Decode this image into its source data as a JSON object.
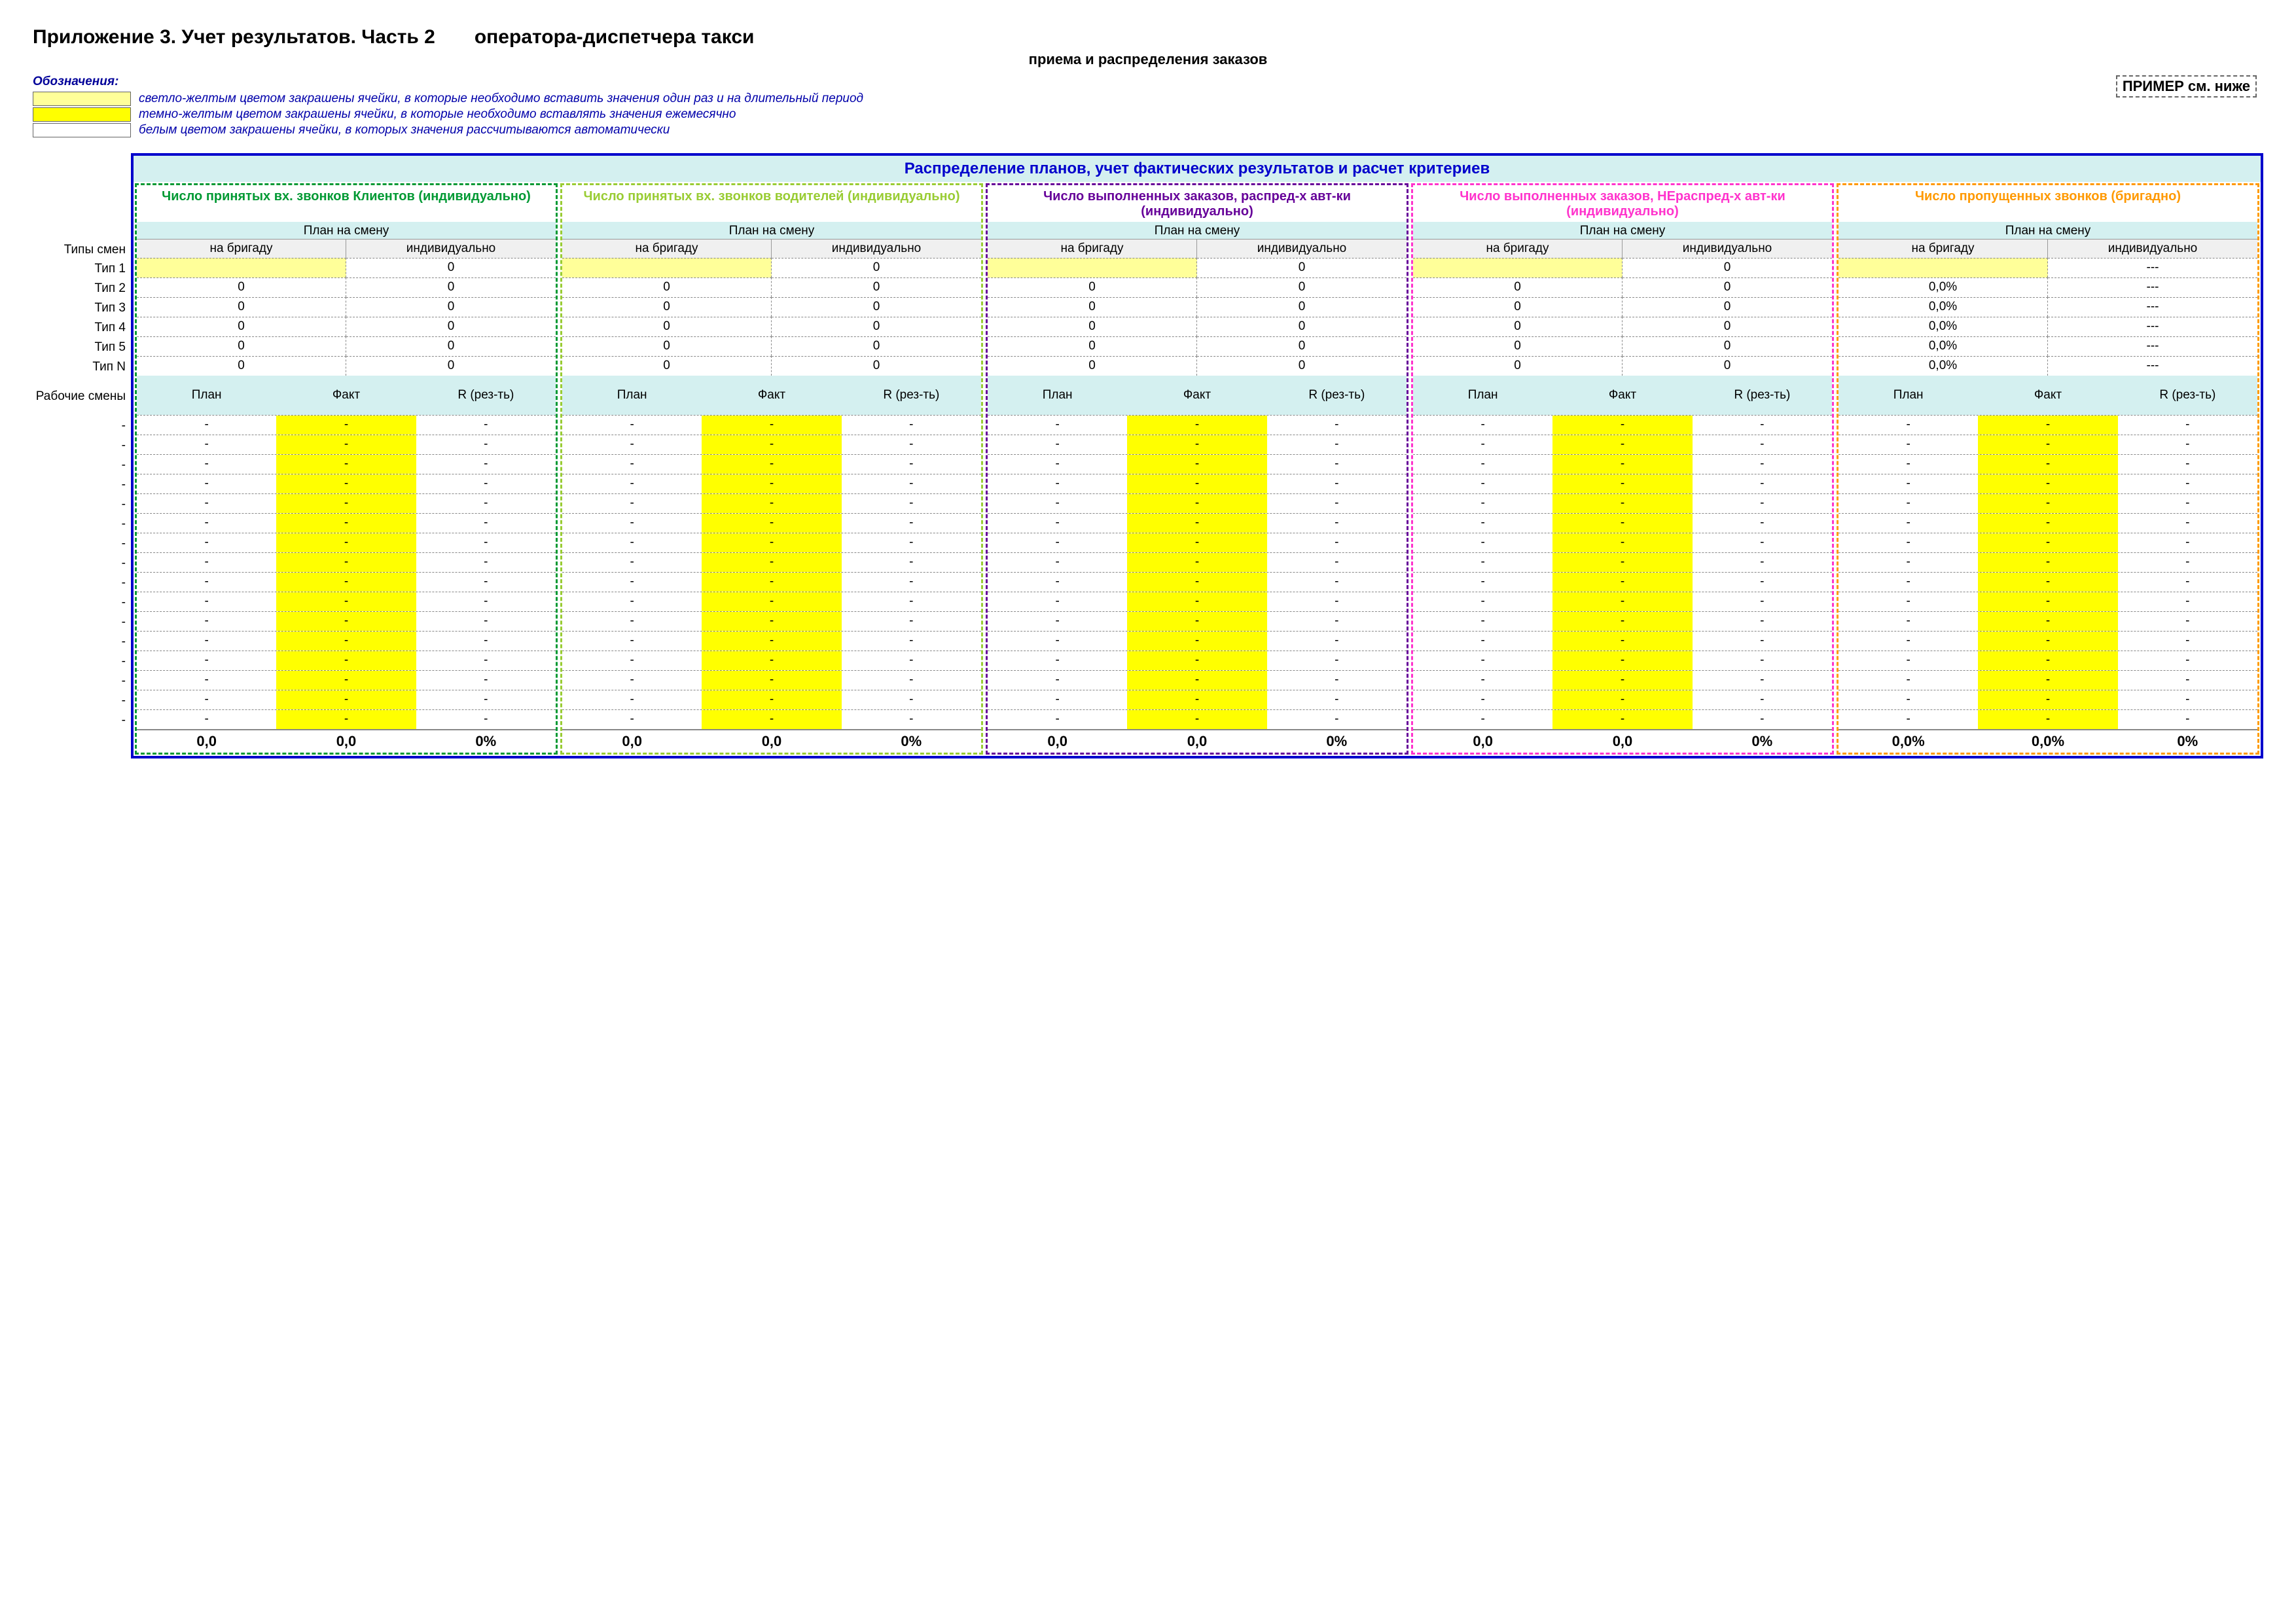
{
  "header": {
    "title_left": "Приложение 3. Учет результатов. Часть 2",
    "title_right": "оператора-диспетчера такси",
    "subtitle": "приема и распределения заказов",
    "example_note": "ПРИМЕР см. ниже"
  },
  "legend": {
    "label": "Обозначения:",
    "items": [
      {
        "swatch": "lite",
        "text": "светло-желтым цветом закрашены ячейки, в которые необходимо вставить значения один раз и на длительный период"
      },
      {
        "swatch": "dark",
        "text": "темно-желтым цветом закрашены ячейки, в которые необходимо вставлять значения ежемесячно"
      },
      {
        "swatch": "white",
        "text": "белым цветом закрашены ячейки, в которых значения рассчитываются автоматически"
      }
    ]
  },
  "main_title": "Распределение планов, учет фактических результатов и расчет критериев",
  "row_labels": {
    "types_header": "Типы смен",
    "types": [
      "Тип 1",
      "Тип 2",
      "Тип 3",
      "Тип 4",
      "Тип 5",
      "Тип N"
    ],
    "shifts_header": "Рабочие смены"
  },
  "common": {
    "plan_header": "План на смену",
    "sub_left": "на бригаду",
    "sub_right": "индивидуально",
    "pfr": [
      "План",
      "Факт",
      "R (рез-ть)"
    ],
    "dash": "-",
    "triple_dash": "---"
  },
  "shift_rows_count": 16,
  "blocks": [
    {
      "title": "Число принятых вх. звонков Клиентов (индивидуально)",
      "border_color": "#009933",
      "title_color": "#009933",
      "type_rows": [
        {
          "left": "",
          "left_bg": "lite",
          "right": "0"
        },
        {
          "left": "0",
          "left_bg": "",
          "right": "0"
        },
        {
          "left": "0",
          "left_bg": "",
          "right": "0"
        },
        {
          "left": "0",
          "left_bg": "",
          "right": "0"
        },
        {
          "left": "0",
          "left_bg": "",
          "right": "0"
        },
        {
          "left": "0",
          "left_bg": "",
          "right": "0"
        }
      ],
      "shift_cells": {
        "plan": "-",
        "fact": "-",
        "fact_bg": "dark",
        "r": "-"
      },
      "sum": [
        "0,0",
        "0,0",
        "0%"
      ]
    },
    {
      "title": "Число принятых вх. звонков водителей (индивидуально)",
      "border_color": "#99cc33",
      "title_color": "#99cc33",
      "type_rows": [
        {
          "left": "",
          "left_bg": "lite",
          "right": "0"
        },
        {
          "left": "0",
          "left_bg": "",
          "right": "0"
        },
        {
          "left": "0",
          "left_bg": "",
          "right": "0"
        },
        {
          "left": "0",
          "left_bg": "",
          "right": "0"
        },
        {
          "left": "0",
          "left_bg": "",
          "right": "0"
        },
        {
          "left": "0",
          "left_bg": "",
          "right": "0"
        }
      ],
      "shift_cells": {
        "plan": "-",
        "fact": "-",
        "fact_bg": "dark",
        "r": "-"
      },
      "sum": [
        "0,0",
        "0,0",
        "0%"
      ]
    },
    {
      "title": "Число выполненных заказов, распред-х авт-ки (индивидуально)",
      "border_color": "#660099",
      "title_color": "#660099",
      "type_rows": [
        {
          "left": "",
          "left_bg": "lite",
          "right": "0"
        },
        {
          "left": "0",
          "left_bg": "",
          "right": "0"
        },
        {
          "left": "0",
          "left_bg": "",
          "right": "0"
        },
        {
          "left": "0",
          "left_bg": "",
          "right": "0"
        },
        {
          "left": "0",
          "left_bg": "",
          "right": "0"
        },
        {
          "left": "0",
          "left_bg": "",
          "right": "0"
        }
      ],
      "shift_cells": {
        "plan": "-",
        "fact": "-",
        "fact_bg": "dark",
        "r": "-"
      },
      "sum": [
        "0,0",
        "0,0",
        "0%"
      ]
    },
    {
      "title": "Число выполненных заказов, НЕраспред-х авт-ки (индивидуально)",
      "border_color": "#ff33cc",
      "title_color": "#ff33cc",
      "type_rows": [
        {
          "left": "",
          "left_bg": "lite",
          "right": "0"
        },
        {
          "left": "0",
          "left_bg": "",
          "right": "0"
        },
        {
          "left": "0",
          "left_bg": "",
          "right": "0"
        },
        {
          "left": "0",
          "left_bg": "",
          "right": "0"
        },
        {
          "left": "0",
          "left_bg": "",
          "right": "0"
        },
        {
          "left": "0",
          "left_bg": "",
          "right": "0"
        }
      ],
      "shift_cells": {
        "plan": "-",
        "fact": "-",
        "fact_bg": "dark",
        "r": "-"
      },
      "sum": [
        "0,0",
        "0,0",
        "0%"
      ]
    },
    {
      "title": "Число пропущенных звонков (бригадно)",
      "border_color": "#ff9900",
      "title_color": "#ff9900",
      "type_rows": [
        {
          "left": "",
          "left_bg": "lite",
          "right": "---"
        },
        {
          "left": "0,0%",
          "left_bg": "",
          "right": "---"
        },
        {
          "left": "0,0%",
          "left_bg": "",
          "right": "---"
        },
        {
          "left": "0,0%",
          "left_bg": "",
          "right": "---"
        },
        {
          "left": "0,0%",
          "left_bg": "",
          "right": "---"
        },
        {
          "left": "0,0%",
          "left_bg": "",
          "right": "---"
        }
      ],
      "shift_cells": {
        "plan": "-",
        "fact": "-",
        "fact_bg": "dark",
        "r": "-"
      },
      "sum": [
        "0,0%",
        "0,0%",
        "0%"
      ]
    }
  ]
}
